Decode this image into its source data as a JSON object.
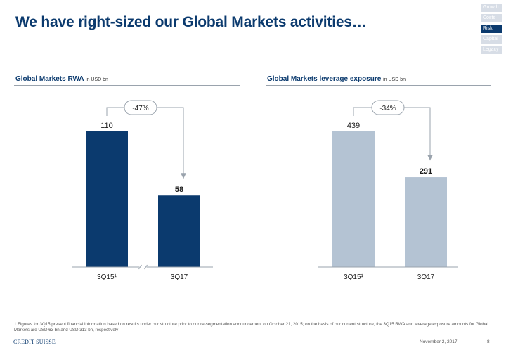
{
  "header": {
    "title": "We have right-sized our Global Markets activities…"
  },
  "nav": {
    "items": [
      {
        "label": "Growth",
        "active": false
      },
      {
        "label": "Costs",
        "active": false
      },
      {
        "label": "Risk",
        "active": true
      },
      {
        "label": "Capital",
        "active": false
      },
      {
        "label": "Legacy",
        "active": false
      }
    ]
  },
  "panels": [
    {
      "title": "Global Markets RWA",
      "unit": "in USD bn"
    },
    {
      "title": "Global Markets leverage exposure",
      "unit": "in USD bn"
    }
  ],
  "chart_data": [
    {
      "type": "bar",
      "title": "Global Markets RWA in USD bn",
      "categories": [
        "3Q15¹",
        "3Q17"
      ],
      "values": [
        110,
        58
      ],
      "value_labels": [
        "110",
        "58"
      ],
      "ylim": [
        0,
        110
      ],
      "colors": [
        "#0b3a6e",
        "#0b3a6e"
      ],
      "change_label": "-47%",
      "axis_break": true,
      "grid": false
    },
    {
      "type": "bar",
      "title": "Global Markets leverage exposure in USD bn",
      "categories": [
        "3Q15¹",
        "3Q17"
      ],
      "values": [
        439,
        291
      ],
      "value_labels": [
        "439",
        "291"
      ],
      "ylim": [
        0,
        439
      ],
      "colors": [
        "#b4c3d3",
        "#b4c3d3"
      ],
      "change_label": "-34%",
      "axis_break": false,
      "grid": false
    }
  ],
  "footer": {
    "footnote": "1 Figures for 3Q15 present financial information based on results under our structure prior to our re-segmentation announcement on October 21, 2015; on the basis of our current structure, the 3Q15 RWA and leverage exposure amounts for Global Markets are USD 63 bn and USD 313 bn, respectively",
    "logo": "CREDIT SUISSE",
    "date": "November 2, 2017",
    "page": "8"
  }
}
